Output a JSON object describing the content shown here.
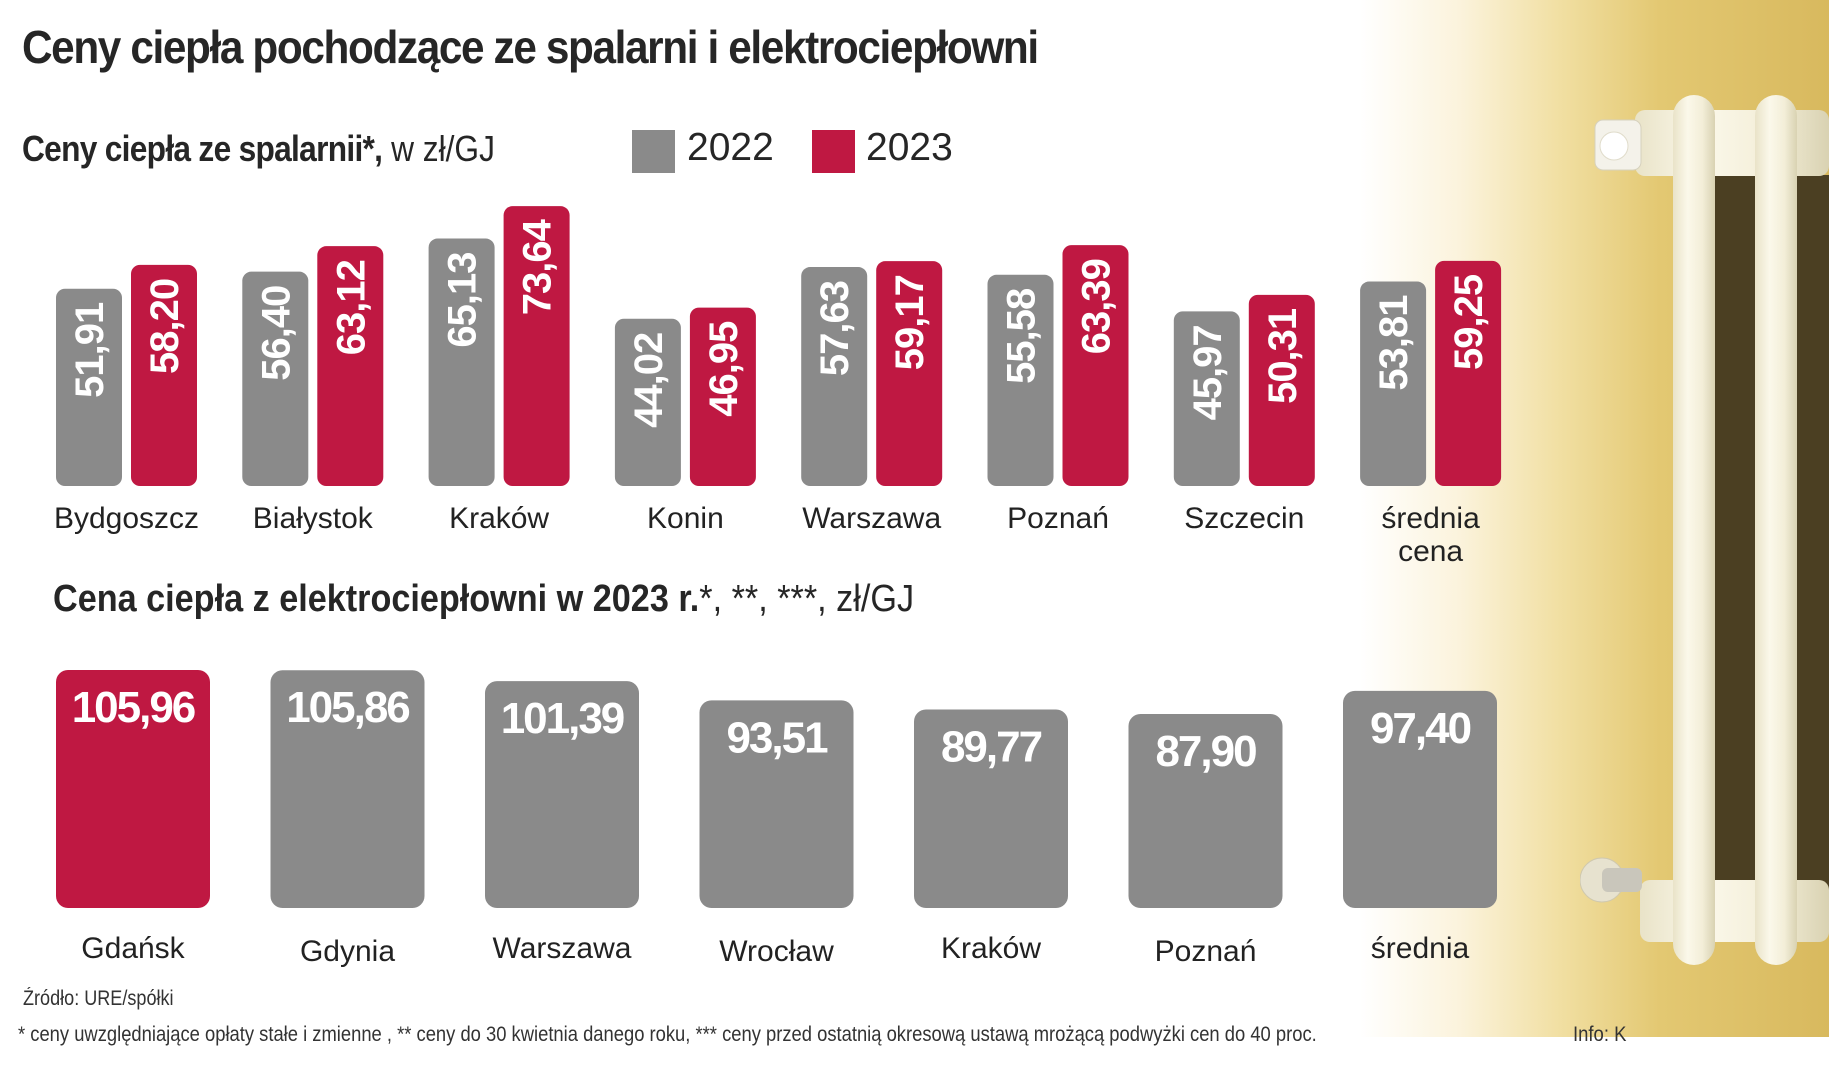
{
  "title": "Ceny ciepła pochodzące ze spalarni i elektrociepłowni",
  "colors": {
    "gray": "#8a8a8a",
    "red": "#bf1842"
  },
  "chart_data": [
    {
      "type": "bar",
      "title_bold": "Ceny ciepła ze spalarnii*,",
      "title_unit": "w zł/GJ",
      "ylabel": "zł/GJ",
      "legend": [
        {
          "name": "2022",
          "color": "#8a8a8a"
        },
        {
          "name": "2023",
          "color": "#bf1842"
        }
      ],
      "legend_position": "top",
      "grid": false,
      "categories": [
        "Bydgoszcz",
        "Białystok",
        "Kraków",
        "Konin",
        "Warszawa",
        "Poznań",
        "Szczecin",
        "średnia cena"
      ],
      "category_lines": [
        [
          "Bydgoszcz"
        ],
        [
          "Białystok"
        ],
        [
          "Kraków"
        ],
        [
          "Konin"
        ],
        [
          "Warszawa"
        ],
        [
          "Poznań"
        ],
        [
          "Szczecin"
        ],
        [
          "średnia",
          "cena"
        ]
      ],
      "series": [
        {
          "name": "2022",
          "values": [
            51.91,
            56.4,
            65.13,
            44.02,
            57.63,
            55.58,
            45.97,
            53.81
          ],
          "labels": [
            "51,91",
            "56,40",
            "65,13",
            "44,02",
            "57,63",
            "55,58",
            "45,97",
            "53,81"
          ]
        },
        {
          "name": "2023",
          "values": [
            58.2,
            63.12,
            73.64,
            46.95,
            59.17,
            63.39,
            50.31,
            59.25
          ],
          "labels": [
            "58,20",
            "63,12",
            "73,64",
            "46,95",
            "59,17",
            "63,39",
            "50,31",
            "59,25"
          ]
        }
      ],
      "ylim": [
        0,
        80
      ]
    },
    {
      "type": "bar",
      "title_bold": "Cena ciepła z elektrociepłowni w 2023 r.",
      "title_unit": "*, **, ***, zł/GJ",
      "ylabel": "zł/GJ",
      "grid": false,
      "categories": [
        "Gdańsk",
        "Gdynia",
        "Warszawa",
        "Wrocław",
        "Kraków",
        "Poznań",
        "średnia"
      ],
      "values": [
        105.96,
        105.86,
        101.39,
        93.51,
        89.77,
        87.9,
        97.4
      ],
      "labels": [
        "105,96",
        "105,86",
        "101,39",
        "93,51",
        "89,77",
        "87,90",
        "97,40"
      ],
      "highlight": [
        true,
        false,
        false,
        false,
        false,
        false,
        false
      ],
      "ylim": [
        8.4,
        110
      ]
    }
  ],
  "source": "Źródło: URE/spółki",
  "footnote": "* ceny uwzględniające opłaty stałe i zmienne , ** ceny do 30 kwietnia danego roku, *** ceny przed ostatnią okresową ustawą mrożącą podwyżki cen do 40 proc.",
  "credit": "Info: K"
}
